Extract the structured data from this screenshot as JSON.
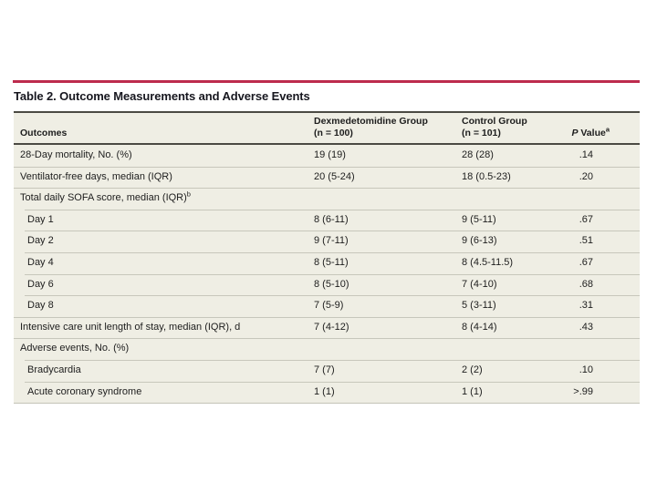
{
  "slide": {
    "title": "Table 2. Outcome Measurements and Adverse Events",
    "accent_color": "#bd2b4d",
    "table_background": "#efeee4"
  },
  "table": {
    "header": {
      "outcomes": "Outcomes",
      "group1_line1": "Dexmedetomidine Group",
      "group1_line2": "(n = 100)",
      "group2_line1": "Control Group",
      "group2_line2": "(n = 101)",
      "p_label_italic": "P",
      "p_label_rest": " Value",
      "p_sup": "a"
    },
    "rows": [
      {
        "label": "28-Day mortality, No. (%)",
        "indent": false,
        "dex": "19 (19)",
        "ctrl": "28 (28)",
        "p": ".14"
      },
      {
        "label": "Ventilator-free days, median (IQR)",
        "indent": false,
        "dex": "20 (5-24)",
        "ctrl": "18 (0.5-23)",
        "p": ".20"
      },
      {
        "label": "Total daily SOFA score, median (IQR)",
        "label_sup": "b",
        "indent": false,
        "dex": "",
        "ctrl": "",
        "p": ""
      },
      {
        "label": "Day 1",
        "indent": true,
        "dex": "8 (6-11)",
        "ctrl": "9 (5-11)",
        "p": ".67"
      },
      {
        "label": "Day 2",
        "indent": true,
        "dex": "9 (7-11)",
        "ctrl": "9 (6-13)",
        "p": ".51"
      },
      {
        "label": "Day 4",
        "indent": true,
        "dex": "8 (5-11)",
        "ctrl": "8 (4.5-11.5)",
        "p": ".67"
      },
      {
        "label": "Day 6",
        "indent": true,
        "dex": "8 (5-10)",
        "ctrl": "7 (4-10)",
        "p": ".68"
      },
      {
        "label": "Day 8",
        "indent": true,
        "dex": "7 (5-9)",
        "ctrl": "5 (3-11)",
        "p": ".31"
      },
      {
        "label": "Intensive care unit length of stay, median (IQR), d",
        "indent": false,
        "dex": "7 (4-12)",
        "ctrl": "8 (4-14)",
        "p": ".43"
      },
      {
        "label": "Adverse events, No. (%)",
        "indent": false,
        "dex": "",
        "ctrl": "",
        "p": ""
      },
      {
        "label": "Bradycardia",
        "indent": true,
        "dex": "7 (7)",
        "ctrl": "2 (2)",
        "p": ".10"
      },
      {
        "label": "Acute coronary syndrome",
        "indent": true,
        "dex": "1 (1)",
        "ctrl": "1 (1)",
        "p": ">.99"
      }
    ]
  }
}
